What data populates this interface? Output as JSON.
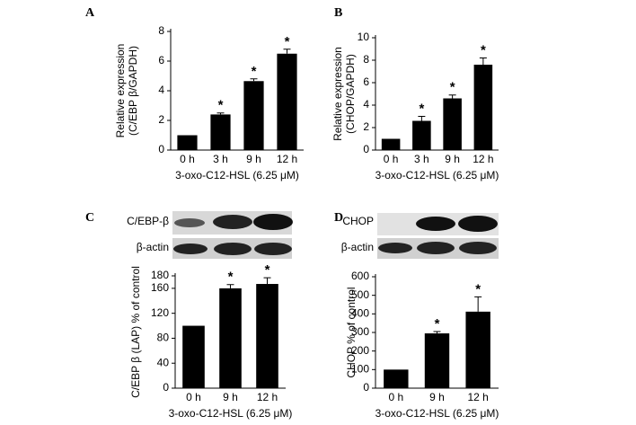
{
  "chart_data": [
    {
      "type": "bar",
      "panel": "A",
      "ylabel": [
        "Relative expression",
        "(C/EBP β/GAPDH)"
      ],
      "xlabel": "3-oxo-C12-HSL (6.25 μM)",
      "categories": [
        "0 h",
        "3 h",
        "9 h",
        "12 h"
      ],
      "values": [
        1.0,
        2.4,
        4.65,
        6.5
      ],
      "errors": [
        null,
        0.1,
        0.15,
        0.3
      ],
      "significance": [
        null,
        "*",
        "*",
        "*"
      ],
      "color": "#000000",
      "ylim": [
        0,
        8
      ],
      "yticks": [
        0,
        2,
        4,
        6,
        8
      ]
    },
    {
      "type": "bar",
      "panel": "B",
      "ylabel": [
        "Relative expression",
        "(CHOP/GAPDH)"
      ],
      "xlabel": "3-oxo-C12-HSL (6.25 μM)",
      "categories": [
        "0 h",
        "3 h",
        "9 h",
        "12 h"
      ],
      "values": [
        1.0,
        2.6,
        4.6,
        7.6
      ],
      "errors": [
        null,
        0.4,
        0.3,
        0.6
      ],
      "significance": [
        null,
        "*",
        "*",
        "*"
      ],
      "color": "#000000",
      "ylim": [
        0,
        10
      ],
      "yticks": [
        0,
        2,
        4,
        6,
        8,
        10
      ]
    },
    {
      "type": "bar",
      "panel": "C",
      "blot_labels": [
        "C/EBP-β",
        "β-actin"
      ],
      "ylabel": [
        "C/EBP β (LAP) % of control"
      ],
      "xlabel": "3-oxo-C12-HSL (6.25 μM)",
      "categories": [
        "0 h",
        "9 h",
        "12 h"
      ],
      "values": [
        100,
        160,
        167
      ],
      "errors": [
        null,
        6,
        10
      ],
      "significance": [
        null,
        "*",
        "*"
      ],
      "color": "#000000",
      "ylim": [
        0,
        180
      ],
      "yticks": [
        0,
        40,
        80,
        120,
        160,
        180
      ]
    },
    {
      "type": "bar",
      "panel": "D",
      "blot_labels": [
        "CHOP",
        "β-actin"
      ],
      "ylabel": [
        "CHOP % of control"
      ],
      "xlabel": "3-oxo-C12-HSL (6.25 μM)",
      "categories": [
        "0 h",
        "9 h",
        "12 h"
      ],
      "values": [
        100,
        295,
        412
      ],
      "errors": [
        null,
        10,
        80
      ],
      "significance": [
        null,
        "*",
        "*"
      ],
      "color": "#000000",
      "ylim": [
        0,
        600
      ],
      "yticks": [
        0,
        100,
        200,
        300,
        400,
        500,
        600
      ]
    }
  ]
}
